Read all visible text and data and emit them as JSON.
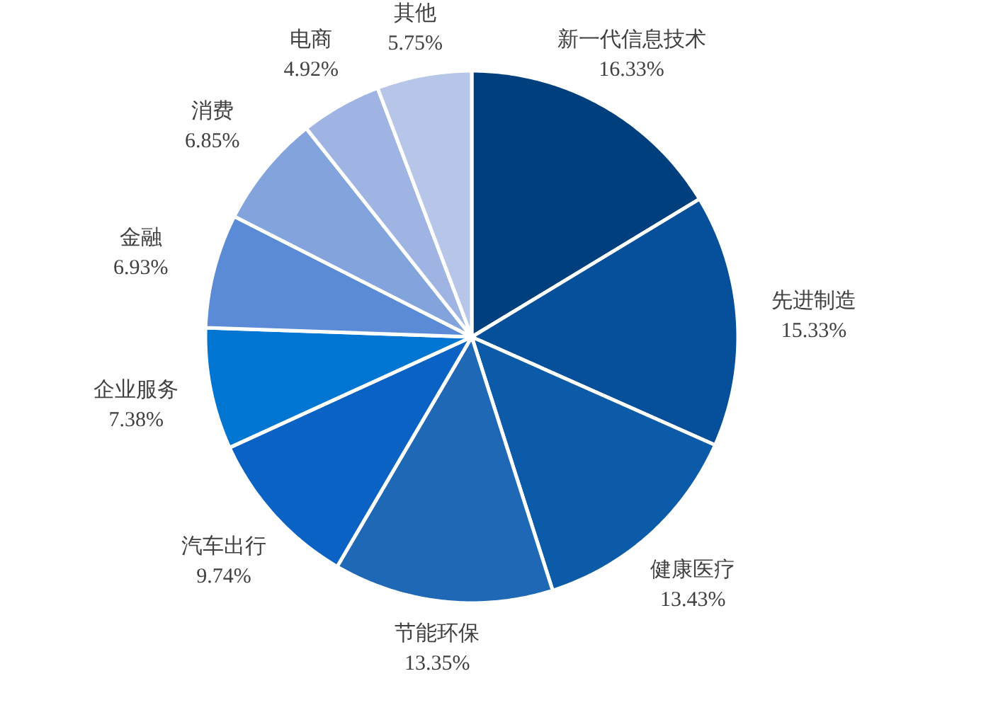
{
  "chart_data": {
    "type": "pie",
    "categories": [
      "新一代信息技术",
      "先进制造",
      "健康医疗",
      "节能环保",
      "汽车出行",
      "企业服务",
      "金融",
      "消费",
      "电商",
      "其他"
    ],
    "values": [
      16.33,
      15.33,
      13.43,
      13.35,
      9.74,
      7.38,
      6.93,
      6.85,
      4.92,
      5.75
    ],
    "value_labels": [
      "16.33%",
      "15.33%",
      "13.43%",
      "13.35%",
      "9.74%",
      "7.38%",
      "6.93%",
      "6.85%",
      "4.92%",
      "5.75%"
    ],
    "colors": [
      "#003f7d",
      "#064f9b",
      "#0c5ba9",
      "#1f68b6",
      "#0962c4",
      "#0075d2",
      "#5b8bd6",
      "#82a3dc",
      "#9fb4e2",
      "#b6c5e8"
    ]
  }
}
